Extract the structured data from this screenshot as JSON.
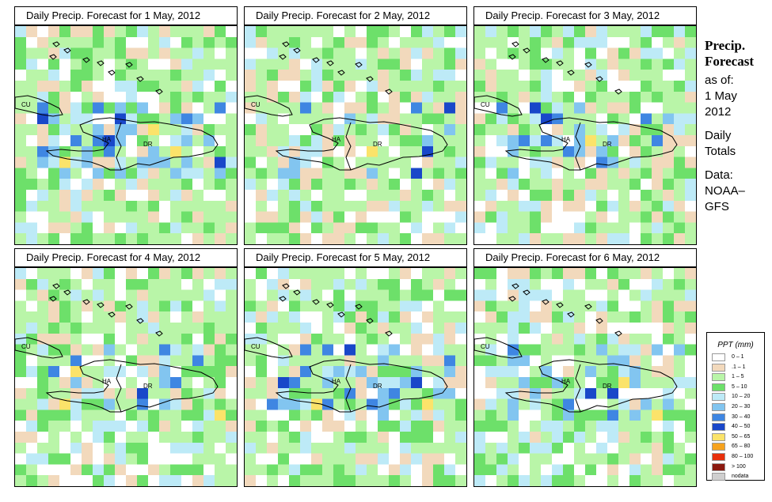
{
  "panels": [
    {
      "title": "Daily Precip. Forecast for  1 May, 2012",
      "seed": 11,
      "wet": 0.45
    },
    {
      "title": "Daily Precip. Forecast for  2 May, 2012",
      "seed": 23,
      "wet": 0.15
    },
    {
      "title": "Daily Precip. Forecast for  3 May, 2012",
      "seed": 37,
      "wet": 0.35
    },
    {
      "title": "Daily Precip. Forecast for  4 May, 2012",
      "seed": 41,
      "wet": 0.4
    },
    {
      "title": "Daily Precip. Forecast for  5 May, 2012",
      "seed": 53,
      "wet": 0.45
    },
    {
      "title": "Daily Precip. Forecast for  6 May, 2012",
      "seed": 67,
      "wet": 0.3
    }
  ],
  "map_labels": {
    "cu": "CU",
    "ha": "HA",
    "dr": "DR"
  },
  "side": {
    "title1": "Precip.",
    "title2": "Forecast",
    "asof": "as of:",
    "date1": "1 May",
    "date2": "2012",
    "daily1": "Daily",
    "daily2": "Totals",
    "data1": "Data:",
    "data2": "NOAA–",
    "data3": "GFS"
  },
  "legend": {
    "title": "PPT (mm)",
    "items": [
      {
        "label": "0 – 1",
        "color": "#ffffff"
      },
      {
        "label": ".1 – 1",
        "color": "#f2d9bc"
      },
      {
        "label": "1 – 5",
        "color": "#b9f5a8"
      },
      {
        "label": "5 – 10",
        "color": "#6de06a"
      },
      {
        "label": "10 – 20",
        "color": "#bdeaf7"
      },
      {
        "label": "20 – 30",
        "color": "#82c5f0"
      },
      {
        "label": "30 – 40",
        "color": "#3f86e2"
      },
      {
        "label": "40 – 50",
        "color": "#1947c9"
      },
      {
        "label": "50 – 65",
        "color": "#fbe36a"
      },
      {
        "label": "65 – 80",
        "color": "#f6a21e"
      },
      {
        "label": "80 – 100",
        "color": "#e8300c"
      },
      {
        "label": "> 100",
        "color": "#8b1a10"
      },
      {
        "label": "nodata",
        "color": "#cfcfcf"
      }
    ]
  }
}
